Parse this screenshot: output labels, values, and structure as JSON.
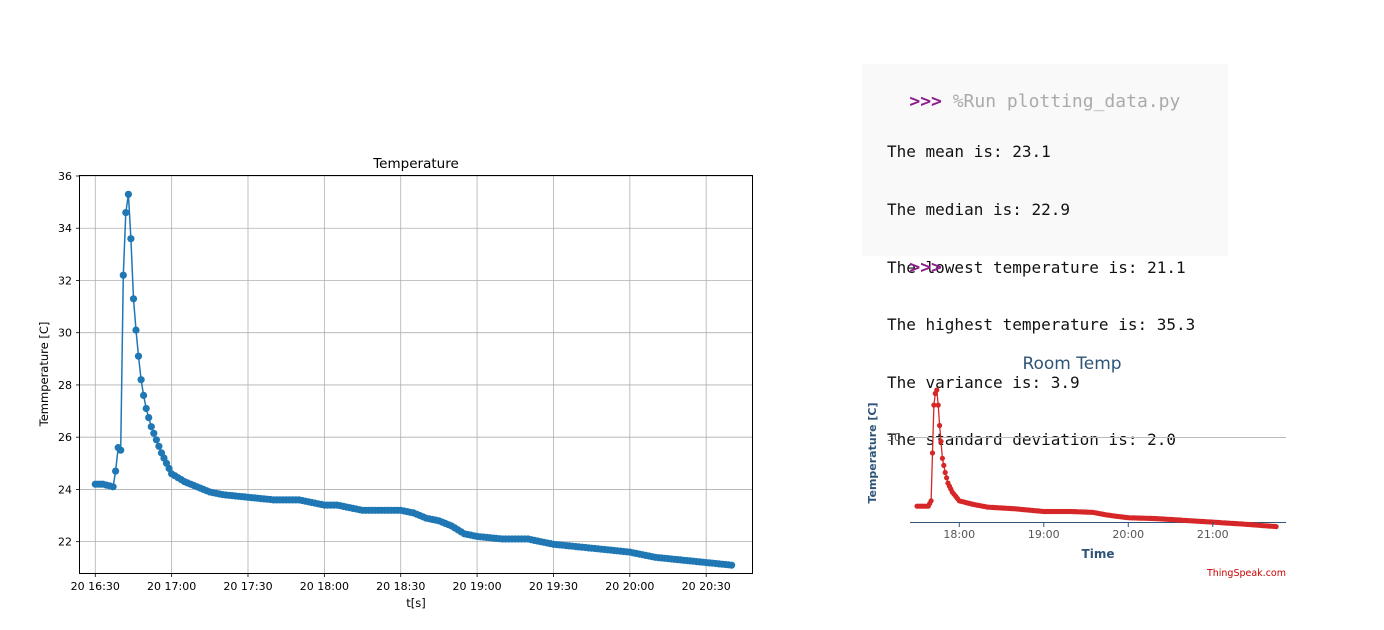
{
  "console": {
    "prompt": ">>>",
    "command": "%Run plotting_data.py",
    "output": [
      "The mean is: 23.1",
      "The median is: 22.9",
      "The lowest temperature is: 21.1",
      "The highest temperature is: 35.3",
      "The variance is: 3.9",
      "The standard deviation is: 2.0"
    ],
    "prompt2": ">>>"
  },
  "chart_data": [
    {
      "type": "line",
      "title": "Temperature",
      "xlabel": "t[s]",
      "ylabel": "Temmperature [C]",
      "markers": true,
      "grid": true,
      "color": "#1f77b4",
      "xlim": [
        "16:24",
        "20:48"
      ],
      "ylim": [
        20.8,
        36
      ],
      "x_ticks": [
        "20 16:30",
        "20 17:00",
        "20 17:30",
        "20 18:00",
        "20 18:30",
        "20 19:00",
        "20 19:30",
        "20 20:00",
        "20 20:30"
      ],
      "y_ticks": [
        22,
        24,
        26,
        28,
        30,
        32,
        34,
        36
      ],
      "series": [
        {
          "points": [
            [
              "16:30",
              24.2
            ],
            [
              "16:33",
              24.2
            ],
            [
              "16:37",
              24.1
            ],
            [
              "16:38",
              24.7
            ],
            [
              "16:39",
              25.6
            ],
            [
              "16:40",
              25.5
            ],
            [
              "16:41",
              32.2
            ],
            [
              "16:42",
              34.6
            ],
            [
              "16:43",
              35.3
            ],
            [
              "16:44",
              33.6
            ],
            [
              "16:45",
              31.3
            ],
            [
              "16:46",
              30.1
            ],
            [
              "16:47",
              29.1
            ],
            [
              "16:48",
              28.2
            ],
            [
              "16:49",
              27.6
            ],
            [
              "16:50",
              27.1
            ],
            [
              "16:52",
              26.4
            ],
            [
              "16:54",
              25.9
            ],
            [
              "16:56",
              25.4
            ],
            [
              "16:58",
              25.0
            ],
            [
              "17:00",
              24.6
            ],
            [
              "17:05",
              24.3
            ],
            [
              "17:10",
              24.1
            ],
            [
              "17:15",
              23.9
            ],
            [
              "17:20",
              23.8
            ],
            [
              "17:30",
              23.7
            ],
            [
              "17:40",
              23.6
            ],
            [
              "17:50",
              23.6
            ],
            [
              "18:00",
              23.4
            ],
            [
              "18:05",
              23.4
            ],
            [
              "18:15",
              23.2
            ],
            [
              "18:20",
              23.2
            ],
            [
              "18:30",
              23.2
            ],
            [
              "18:35",
              23.1
            ],
            [
              "18:40",
              22.9
            ],
            [
              "18:45",
              22.8
            ],
            [
              "18:50",
              22.6
            ],
            [
              "18:55",
              22.3
            ],
            [
              "19:00",
              22.2
            ],
            [
              "19:10",
              22.1
            ],
            [
              "19:20",
              22.1
            ],
            [
              "19:30",
              21.9
            ],
            [
              "19:40",
              21.8
            ],
            [
              "19:50",
              21.7
            ],
            [
              "20:00",
              21.6
            ],
            [
              "20:10",
              21.4
            ],
            [
              "20:20",
              21.3
            ],
            [
              "20:30",
              21.2
            ],
            [
              "20:40",
              21.1
            ]
          ]
        }
      ]
    },
    {
      "type": "line",
      "title": "Room Temp",
      "xlabel": "Time",
      "ylabel": "Temperature [C]",
      "markers": true,
      "color": "#d62728",
      "credit": "ThingSpeak.com",
      "xlim": [
        "17:25",
        "21:52"
      ],
      "ylim": [
        20.5,
        35.5
      ],
      "x_ticks": [
        "18:00",
        "19:00",
        "20:00",
        "21:00"
      ],
      "y_ticks": [
        "30"
      ],
      "series": [
        {
          "points": [
            [
              "17:30",
              22.2
            ],
            [
              "17:38",
              22.2
            ],
            [
              "17:40",
              22.8
            ],
            [
              "17:41",
              28.2
            ],
            [
              "17:42",
              33.6
            ],
            [
              "17:43",
              34.9
            ],
            [
              "17:44",
              35.3
            ],
            [
              "17:45",
              33.6
            ],
            [
              "17:46",
              31.3
            ],
            [
              "17:47",
              29.5
            ],
            [
              "17:48",
              27.6
            ],
            [
              "17:50",
              26.0
            ],
            [
              "17:52",
              24.8
            ],
            [
              "17:55",
              23.8
            ],
            [
              "18:00",
              22.8
            ],
            [
              "18:10",
              22.4
            ],
            [
              "18:20",
              22.1
            ],
            [
              "18:40",
              21.9
            ],
            [
              "19:00",
              21.6
            ],
            [
              "19:10",
              21.6
            ],
            [
              "19:20",
              21.6
            ],
            [
              "19:35",
              21.5
            ],
            [
              "19:45",
              21.2
            ],
            [
              "20:00",
              20.9
            ],
            [
              "20:20",
              20.8
            ],
            [
              "20:40",
              20.6
            ],
            [
              "21:00",
              20.4
            ],
            [
              "21:20",
              20.2
            ],
            [
              "21:45",
              19.9
            ]
          ]
        }
      ]
    }
  ]
}
